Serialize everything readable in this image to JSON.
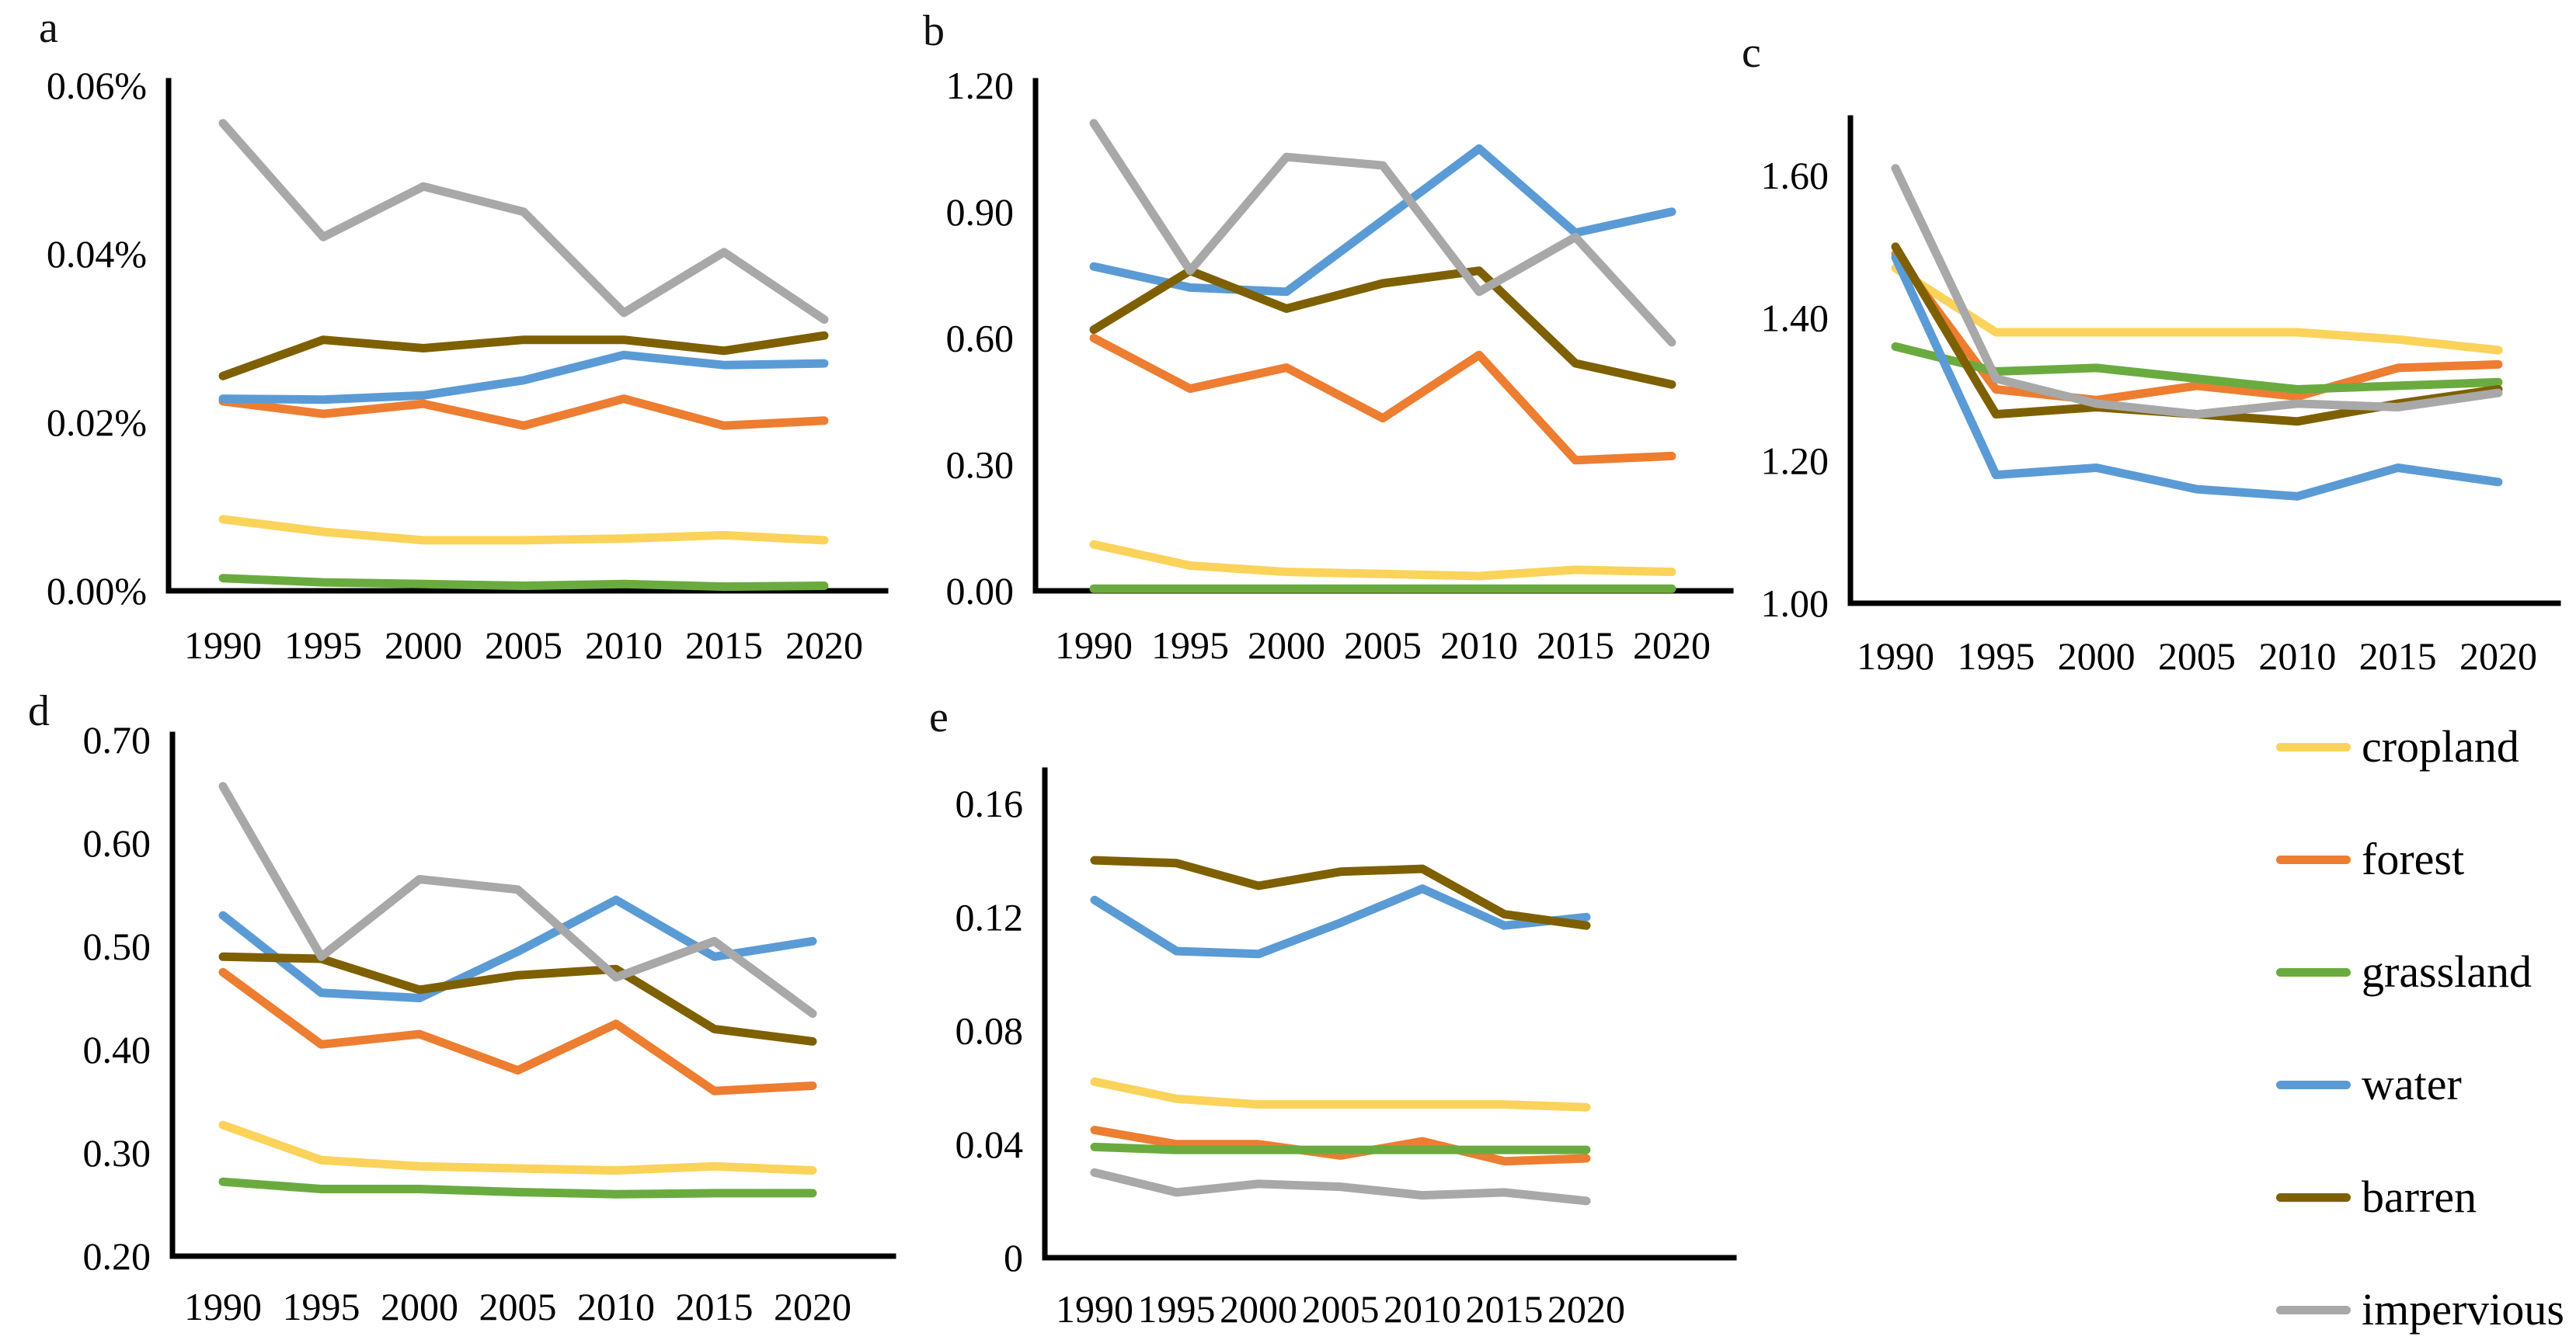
{
  "figure_title": "",
  "x_axis_years": [
    "1990",
    "1995",
    "2000",
    "2005",
    "2010",
    "2015",
    "2020"
  ],
  "series_colors": {
    "cropland": "#FBD35B",
    "forest": "#ED7D31",
    "grassland": "#6AAB40",
    "water": "#5B9BD5",
    "barren": "#7E6000",
    "impervious": "#A8A8A8"
  },
  "legend": {
    "items": [
      {
        "label": "cropland",
        "color": "#FBD35B"
      },
      {
        "label": "forest",
        "color": "#ED7D31"
      },
      {
        "label": "grassland",
        "color": "#6AAB40"
      },
      {
        "label": "water",
        "color": "#5B9BD5"
      },
      {
        "label": "barren",
        "color": "#7E6000"
      },
      {
        "label": "impervious",
        "color": "#A8A8A8"
      }
    ]
  },
  "chart_data": [
    {
      "type": "line",
      "panel_label": "a",
      "x": [
        1990,
        1995,
        2000,
        2005,
        2010,
        2015,
        2020
      ],
      "xlabel": "",
      "ylabel": "",
      "ylim": [
        0,
        0.06
      ],
      "yticks": [
        0,
        0.02,
        0.04,
        0.06
      ],
      "ytick_labels": [
        "0.00%",
        "0.02%",
        "0.04%",
        "0.06%"
      ],
      "grid": false,
      "legend_position": "figure-right",
      "series": [
        {
          "name": "cropland",
          "values": [
            0.0085,
            0.007,
            0.006,
            0.006,
            0.0062,
            0.0066,
            0.006
          ]
        },
        {
          "name": "forest",
          "values": [
            0.0225,
            0.021,
            0.0222,
            0.0196,
            0.0228,
            0.0196,
            0.0202
          ]
        },
        {
          "name": "grassland",
          "values": [
            0.0015,
            0.001,
            0.0008,
            0.0006,
            0.0008,
            0.0005,
            0.0006
          ]
        },
        {
          "name": "water",
          "values": [
            0.0228,
            0.0227,
            0.0232,
            0.025,
            0.028,
            0.0268,
            0.027
          ]
        },
        {
          "name": "barren",
          "values": [
            0.0255,
            0.0298,
            0.0288,
            0.0298,
            0.0298,
            0.0285,
            0.0303
          ]
        },
        {
          "name": "impervious",
          "values": [
            0.0555,
            0.042,
            0.048,
            0.045,
            0.033,
            0.0402,
            0.0322
          ]
        }
      ]
    },
    {
      "type": "line",
      "panel_label": "b",
      "x": [
        1990,
        1995,
        2000,
        2005,
        2010,
        2015,
        2020
      ],
      "xlabel": "",
      "ylabel": "",
      "ylim": [
        0,
        1.2
      ],
      "yticks": [
        0,
        0.3,
        0.6,
        0.9,
        1.2
      ],
      "ytick_labels": [
        "0.00",
        "0.30",
        "0.60",
        "0.90",
        "1.20"
      ],
      "grid": false,
      "series": [
        {
          "name": "cropland",
          "values": [
            0.11,
            0.06,
            0.045,
            0.04,
            0.035,
            0.05,
            0.045
          ]
        },
        {
          "name": "forest",
          "values": [
            0.6,
            0.48,
            0.53,
            0.41,
            0.56,
            0.31,
            0.32
          ]
        },
        {
          "name": "grassland",
          "values": [
            0.005,
            0.005,
            0.005,
            0.005,
            0.005,
            0.005,
            0.005
          ]
        },
        {
          "name": "water",
          "values": [
            0.77,
            0.72,
            0.71,
            0.88,
            1.05,
            0.85,
            0.9
          ]
        },
        {
          "name": "barren",
          "values": [
            0.62,
            0.76,
            0.67,
            0.73,
            0.76,
            0.54,
            0.49
          ]
        },
        {
          "name": "impervious",
          "values": [
            1.11,
            0.76,
            1.03,
            1.01,
            0.71,
            0.84,
            0.59
          ]
        }
      ]
    },
    {
      "type": "line",
      "panel_label": "c",
      "x": [
        1990,
        1995,
        2000,
        2005,
        2010,
        2015,
        2020
      ],
      "xlabel": "",
      "ylabel": "",
      "ylim": [
        1.0,
        1.68
      ],
      "yticks": [
        1.0,
        1.2,
        1.4,
        1.6
      ],
      "ytick_labels": [
        "1.00",
        "1.20",
        "1.40",
        "1.60"
      ],
      "grid": false,
      "series": [
        {
          "name": "cropland",
          "values": [
            1.47,
            1.38,
            1.38,
            1.38,
            1.38,
            1.37,
            1.355
          ]
        },
        {
          "name": "forest",
          "values": [
            1.49,
            1.3,
            1.285,
            1.305,
            1.29,
            1.33,
            1.335
          ]
        },
        {
          "name": "grassland",
          "values": [
            1.36,
            1.325,
            1.33,
            1.315,
            1.3,
            1.305,
            1.31
          ]
        },
        {
          "name": "water",
          "values": [
            1.485,
            1.18,
            1.19,
            1.16,
            1.15,
            1.19,
            1.17
          ]
        },
        {
          "name": "barren",
          "values": [
            1.5,
            1.265,
            1.275,
            1.265,
            1.255,
            1.28,
            1.3
          ]
        },
        {
          "name": "impervious",
          "values": [
            1.61,
            1.315,
            1.28,
            1.265,
            1.28,
            1.275,
            1.295
          ]
        }
      ]
    },
    {
      "type": "line",
      "panel_label": "d",
      "x": [
        1990,
        1995,
        2000,
        2005,
        2010,
        2015,
        2020
      ],
      "xlabel": "",
      "ylabel": "",
      "ylim": [
        0.2,
        0.7
      ],
      "yticks": [
        0.2,
        0.3,
        0.4,
        0.5,
        0.6,
        0.7
      ],
      "ytick_labels": [
        "0.20",
        "0.30",
        "0.40",
        "0.50",
        "0.60",
        "0.70"
      ],
      "grid": false,
      "series": [
        {
          "name": "cropland",
          "values": [
            0.327,
            0.293,
            0.287,
            0.285,
            0.283,
            0.287,
            0.283
          ]
        },
        {
          "name": "forest",
          "values": [
            0.475,
            0.405,
            0.415,
            0.38,
            0.425,
            0.36,
            0.365
          ]
        },
        {
          "name": "grassland",
          "values": [
            0.272,
            0.265,
            0.265,
            0.262,
            0.26,
            0.261,
            0.261
          ]
        },
        {
          "name": "water",
          "values": [
            0.53,
            0.455,
            0.45,
            0.495,
            0.545,
            0.49,
            0.505
          ]
        },
        {
          "name": "barren",
          "values": [
            0.49,
            0.488,
            0.458,
            0.472,
            0.478,
            0.42,
            0.408
          ]
        },
        {
          "name": "impervious",
          "values": [
            0.655,
            0.49,
            0.565,
            0.555,
            0.47,
            0.505,
            0.435
          ]
        }
      ]
    },
    {
      "type": "line",
      "panel_label": "e",
      "x": [
        1990,
        1995,
        2000,
        2005,
        2010,
        2015,
        2020
      ],
      "xlabel": "",
      "ylabel": "",
      "ylim": [
        0,
        0.16
      ],
      "yticks": [
        0,
        0.04,
        0.08,
        0.12,
        0.16
      ],
      "ytick_labels": [
        "0",
        "0.04",
        "0.08",
        "0.12",
        "0.16"
      ],
      "grid": false,
      "series": [
        {
          "name": "cropland",
          "values": [
            0.062,
            0.056,
            0.054,
            0.054,
            0.054,
            0.054,
            0.053
          ]
        },
        {
          "name": "forest",
          "values": [
            0.045,
            0.04,
            0.04,
            0.036,
            0.041,
            0.034,
            0.035
          ]
        },
        {
          "name": "grassland",
          "values": [
            0.039,
            0.038,
            0.038,
            0.038,
            0.038,
            0.038,
            0.038
          ]
        },
        {
          "name": "water",
          "values": [
            0.126,
            0.108,
            0.107,
            0.118,
            0.13,
            0.117,
            0.12
          ]
        },
        {
          "name": "barren",
          "values": [
            0.14,
            0.139,
            0.131,
            0.136,
            0.137,
            0.121,
            0.117
          ]
        },
        {
          "name": "impervious",
          "values": [
            0.03,
            0.023,
            0.026,
            0.025,
            0.022,
            0.023,
            0.02
          ]
        }
      ]
    }
  ]
}
